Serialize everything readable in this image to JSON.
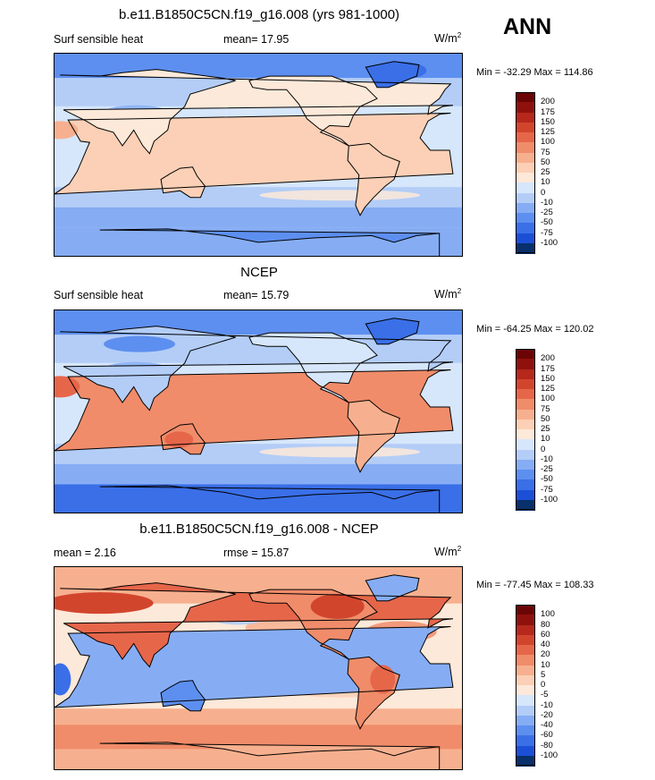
{
  "season": "ANN",
  "palette_main": [
    "#08306b",
    "#1c4fd6",
    "#3a6fe8",
    "#5d8ff0",
    "#86adf4",
    "#b3cdf7",
    "#d6e6fb",
    "#fde9d9",
    "#fbd0b6",
    "#f7b08f",
    "#f08c6a",
    "#e6664a",
    "#d2452d",
    "#b5281b",
    "#8f110d",
    "#6b0505"
  ],
  "panels": [
    {
      "title": "b.e11.B1850C5CN.f19_g16.008 (yrs 981-1000)",
      "variable": "Surf sensible heat",
      "stat_text": "mean=  17.95",
      "units": "W/m",
      "units_exp": "2",
      "minmax": "Min = -32.29 Max = 114.86",
      "levels": [
        "200",
        "175",
        "150",
        "125",
        "100",
        "75",
        "50",
        "25",
        "10",
        "0",
        "-10",
        "-25",
        "-50",
        "-75",
        "-100"
      ],
      "style": "model"
    },
    {
      "title": "NCEP",
      "variable": "Surf sensible heat",
      "stat_text": "mean=  15.79",
      "units": "W/m",
      "units_exp": "2",
      "minmax": "Min = -64.25 Max = 120.02",
      "levels": [
        "200",
        "175",
        "150",
        "125",
        "100",
        "75",
        "50",
        "25",
        "10",
        "0",
        "-10",
        "-25",
        "-50",
        "-75",
        "-100"
      ],
      "style": "obs"
    },
    {
      "title": "b.e11.B1850C5CN.f19_g16.008 - NCEP",
      "variable": "mean =  2.16",
      "stat_text": "rmse =  15.87",
      "units": "W/m",
      "units_exp": "2",
      "minmax": "Min = -77.45 Max = 108.33",
      "levels": [
        "100",
        "80",
        "60",
        "40",
        "20",
        "10",
        "5",
        "0",
        "-5",
        "-10",
        "-20",
        "-40",
        "-60",
        "-80",
        "-100"
      ],
      "style": "diff"
    }
  ]
}
